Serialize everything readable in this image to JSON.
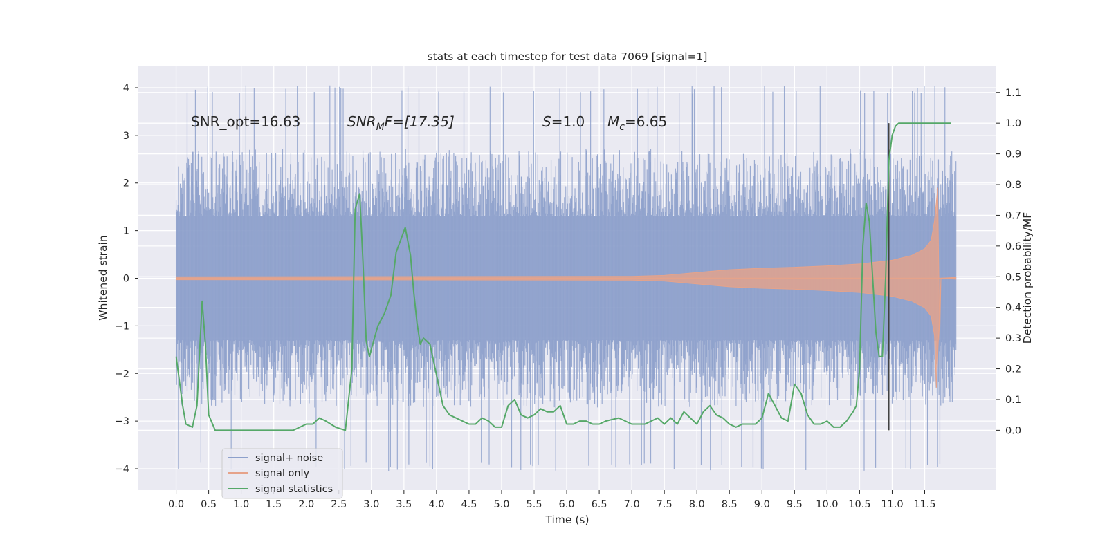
{
  "chart_data": {
    "type": "line",
    "title": "stats at each timestep for test data 7069 [signal=1]",
    "xlabel": "Time (s)",
    "ylabel": "Whitened strain",
    "y2label": "Detection probability/MF",
    "xlim": [
      -0.58,
      12.6
    ],
    "ylim": [
      -4.45,
      4.45
    ],
    "y2lim": [
      -0.195,
      1.185
    ],
    "x_ticks": [
      "0.0",
      "0.5",
      "1.0",
      "1.5",
      "2.0",
      "2.5",
      "3.0",
      "3.5",
      "4.0",
      "4.5",
      "5.0",
      "5.5",
      "6.0",
      "6.5",
      "7.0",
      "7.5",
      "8.0",
      "8.5",
      "9.0",
      "9.5",
      "10.0",
      "10.5",
      "11.0",
      "11.5"
    ],
    "y_ticks": [
      "4",
      "3",
      "2",
      "1",
      "0",
      "−1",
      "−2",
      "−3",
      "−4"
    ],
    "y2_ticks": [
      "1.1",
      "1.0",
      "0.9",
      "0.8",
      "0.7",
      "0.6",
      "0.5",
      "0.4",
      "0.3",
      "0.2",
      "0.1",
      "0.0"
    ],
    "grid": true,
    "legend_position": "lower left",
    "annotations": {
      "snr_opt": "SNR_opt=16.63",
      "snr_mf_main": "SNR",
      "snr_mf_sub": "M",
      "snr_mf_rest": "F=[17.35]",
      "s_main": "S",
      "s_rest": "=1.0",
      "mc_main": "M",
      "mc_sub": "c",
      "mc_rest": "=6.65"
    },
    "series": [
      {
        "name": "signal+ noise",
        "color": "#8da0cb",
        "x_range": [
          0.0,
          11.98
        ],
        "typical_envelope": [
          -1.3,
          1.3
        ],
        "peak_envelope": [
          -4.05,
          4.05
        ]
      },
      {
        "name": "signal only",
        "color": "#e6a38a",
        "envelope": {
          "x": [
            0.0,
            7.0,
            7.5,
            8.0,
            8.5,
            9.0,
            9.5,
            10.0,
            10.5,
            11.0,
            11.3,
            11.5,
            11.6,
            11.65,
            11.7
          ],
          "amplitude": [
            0.03,
            0.04,
            0.06,
            0.12,
            0.18,
            0.21,
            0.23,
            0.26,
            0.3,
            0.38,
            0.48,
            0.62,
            0.8,
            1.2,
            1.9
          ]
        }
      },
      {
        "name": "signal statistics",
        "color": "#55a868",
        "x": [
          0.0,
          0.1,
          0.15,
          0.25,
          0.32,
          0.4,
          0.45,
          0.5,
          0.6,
          0.8,
          1.0,
          1.2,
          1.4,
          1.6,
          1.8,
          2.0,
          2.1,
          2.2,
          2.3,
          2.45,
          2.6,
          2.7,
          2.75,
          2.82,
          2.87,
          2.92,
          2.97,
          3.02,
          3.1,
          3.2,
          3.3,
          3.38,
          3.45,
          3.52,
          3.6,
          3.65,
          3.7,
          3.75,
          3.8,
          3.9,
          4.0,
          4.1,
          4.2,
          4.3,
          4.4,
          4.5,
          4.6,
          4.7,
          4.8,
          4.9,
          5.0,
          5.1,
          5.2,
          5.3,
          5.4,
          5.5,
          5.6,
          5.7,
          5.8,
          5.9,
          6.0,
          6.1,
          6.2,
          6.3,
          6.4,
          6.5,
          6.6,
          6.8,
          7.0,
          7.2,
          7.4,
          7.5,
          7.6,
          7.7,
          7.8,
          7.9,
          8.0,
          8.1,
          8.2,
          8.3,
          8.4,
          8.5,
          8.6,
          8.7,
          8.8,
          8.9,
          9.0,
          9.1,
          9.2,
          9.3,
          9.4,
          9.5,
          9.6,
          9.7,
          9.8,
          9.9,
          10.0,
          10.1,
          10.2,
          10.3,
          10.4,
          10.45,
          10.5,
          10.55,
          10.6,
          10.65,
          10.7,
          10.75,
          10.8,
          10.85,
          10.9,
          10.95,
          11.0,
          11.05,
          11.1,
          11.2,
          11.3,
          11.5,
          11.7,
          11.9
        ],
        "values": [
          0.24,
          0.08,
          0.02,
          0.01,
          0.08,
          0.42,
          0.28,
          0.05,
          0.0,
          0.0,
          0.0,
          0.0,
          0.0,
          0.0,
          0.0,
          0.02,
          0.02,
          0.04,
          0.03,
          0.01,
          0.0,
          0.2,
          0.72,
          0.77,
          0.55,
          0.29,
          0.24,
          0.28,
          0.34,
          0.38,
          0.44,
          0.58,
          0.62,
          0.66,
          0.57,
          0.45,
          0.35,
          0.28,
          0.3,
          0.28,
          0.18,
          0.08,
          0.05,
          0.04,
          0.03,
          0.02,
          0.02,
          0.04,
          0.03,
          0.01,
          0.01,
          0.08,
          0.1,
          0.05,
          0.04,
          0.05,
          0.07,
          0.06,
          0.06,
          0.08,
          0.02,
          0.02,
          0.03,
          0.03,
          0.02,
          0.02,
          0.03,
          0.04,
          0.02,
          0.02,
          0.04,
          0.02,
          0.04,
          0.02,
          0.06,
          0.04,
          0.02,
          0.06,
          0.08,
          0.05,
          0.04,
          0.02,
          0.01,
          0.02,
          0.02,
          0.02,
          0.04,
          0.12,
          0.08,
          0.04,
          0.03,
          0.15,
          0.12,
          0.05,
          0.02,
          0.02,
          0.03,
          0.01,
          0.01,
          0.03,
          0.06,
          0.08,
          0.2,
          0.6,
          0.74,
          0.68,
          0.5,
          0.32,
          0.24,
          0.24,
          0.5,
          0.88,
          0.96,
          0.99,
          1.0,
          1.0,
          1.0,
          1.0,
          1.0,
          1.0
        ],
        "trigger_time": 10.95
      }
    ]
  }
}
